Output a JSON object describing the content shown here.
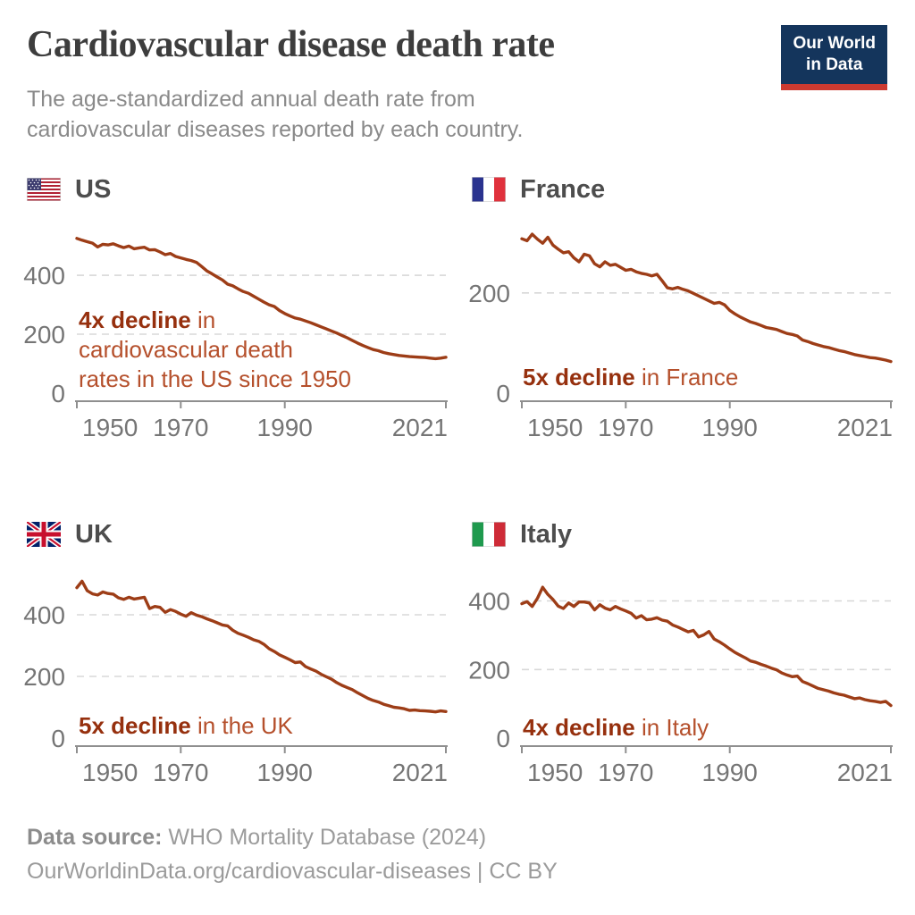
{
  "header": {
    "title": "Cardiovascular disease death rate",
    "subtitle": "The age-standardized annual death rate from cardiovascular diseases reported by each country.",
    "logo": {
      "line1": "Our World",
      "line2": "in Data"
    }
  },
  "footer": {
    "source_label": "Data source:",
    "source_value": " WHO Mortality Database (2024)",
    "link_line": "OurWorldinData.org/cardiovascular-diseases | CC BY"
  },
  "colors": {
    "line_color": "#9d3d17",
    "grid_color": "#d8d8d8",
    "axis_color": "#8f8f8f",
    "tick_label_color": "#757575",
    "title_color": "#3d3d3d",
    "subtitle_color": "#8a8a8a",
    "country_color": "#4d4d4d",
    "footer_color": "#9b9b9b",
    "anno_bold_color": "#96300e",
    "anno_color": "#b5502c",
    "logo_bg": "#14355c",
    "logo_accent": "#cd3a30"
  },
  "chart_data": [
    {
      "type": "line",
      "country": "US",
      "flag_icon": "us-flag-icon",
      "xlim": [
        1950,
        2021
      ],
      "x_ticks": [
        1950,
        1970,
        1990,
        2021
      ],
      "y_ticks": [
        0,
        200,
        400
      ],
      "ylim": [
        0,
        570
      ],
      "grid": true,
      "legend": "none",
      "annotation": {
        "bold": "4x decline",
        "line1_rest": " in",
        "line2": "cardiovascular death",
        "line3": "rates in the US since 1950"
      },
      "series": [
        {
          "name": "US cardiovascular death rate",
          "x_start": 1950,
          "x_step": 1,
          "values": [
            525,
            519,
            514,
            509,
            496,
            505,
            503,
            507,
            500,
            494,
            499,
            490,
            493,
            495,
            486,
            487,
            479,
            470,
            474,
            464,
            459,
            454,
            450,
            444,
            430,
            415,
            405,
            394,
            384,
            370,
            364,
            354,
            345,
            339,
            329,
            319,
            309,
            300,
            294,
            280,
            270,
            262,
            255,
            251,
            245,
            239,
            232,
            225,
            218,
            211,
            204,
            196,
            188,
            179,
            170,
            162,
            155,
            148,
            144,
            138,
            134,
            131,
            128,
            126,
            124,
            123,
            122,
            121,
            119,
            117,
            119,
            122
          ]
        }
      ]
    },
    {
      "type": "line",
      "country": "France",
      "flag_icon": "france-flag-icon",
      "xlim": [
        1950,
        2021
      ],
      "x_ticks": [
        1950,
        1970,
        1990,
        2021
      ],
      "y_ticks": [
        0,
        200
      ],
      "ylim": [
        0,
        335
      ],
      "grid": true,
      "legend": "none",
      "annotation": {
        "bold": "5x decline",
        "rest": " in France"
      },
      "series": [
        {
          "name": "France cardiovascular death rate",
          "x_start": 1950,
          "x_step": 1,
          "values": [
            308,
            304,
            317,
            307,
            299,
            311,
            295,
            287,
            280,
            282,
            270,
            262,
            277,
            274,
            258,
            252,
            262,
            255,
            257,
            251,
            245,
            247,
            242,
            239,
            237,
            234,
            237,
            224,
            210,
            208,
            211,
            207,
            204,
            199,
            194,
            189,
            184,
            179,
            181,
            176,
            165,
            158,
            152,
            147,
            142,
            139,
            135,
            131,
            129,
            127,
            123,
            119,
            117,
            114,
            106,
            103,
            99,
            96,
            93,
            91,
            88,
            85,
            83,
            80,
            77,
            75,
            73,
            71,
            70,
            68,
            66,
            63
          ]
        }
      ]
    },
    {
      "type": "line",
      "country": "UK",
      "flag_icon": "uk-flag-icon",
      "xlim": [
        1950,
        2021
      ],
      "x_ticks": [
        1950,
        1970,
        1990,
        2021
      ],
      "y_ticks": [
        0,
        200,
        400
      ],
      "ylim": [
        0,
        545
      ],
      "grid": true,
      "legend": "none",
      "annotation": {
        "bold": "5x decline",
        "rest": " in the UK"
      },
      "series": [
        {
          "name": "UK cardiovascular death rate",
          "x_start": 1950,
          "x_step": 1,
          "values": [
            488,
            509,
            478,
            468,
            464,
            474,
            469,
            467,
            455,
            450,
            457,
            451,
            454,
            457,
            420,
            427,
            424,
            408,
            417,
            411,
            402,
            395,
            407,
            399,
            394,
            387,
            381,
            374,
            367,
            364,
            350,
            340,
            334,
            327,
            319,
            314,
            304,
            290,
            281,
            270,
            262,
            254,
            245,
            247,
            232,
            224,
            217,
            207,
            199,
            191,
            180,
            171,
            164,
            157,
            147,
            138,
            129,
            122,
            117,
            110,
            105,
            100,
            98,
            95,
            90,
            91,
            89,
            88,
            87,
            85,
            88,
            86
          ]
        }
      ]
    },
    {
      "type": "line",
      "country": "Italy",
      "flag_icon": "italy-flag-icon",
      "xlim": [
        1950,
        2021
      ],
      "x_ticks": [
        1950,
        1970,
        1990,
        2021
      ],
      "y_ticks": [
        0,
        200,
        400
      ],
      "ylim": [
        0,
        490
      ],
      "grid": true,
      "legend": "none",
      "annotation": {
        "bold": "4x decline",
        "rest": " in Italy"
      },
      "series": [
        {
          "name": "Italy cardiovascular death rate",
          "x_start": 1950,
          "x_step": 1,
          "values": [
            392,
            398,
            384,
            408,
            440,
            419,
            404,
            385,
            378,
            394,
            384,
            397,
            397,
            394,
            374,
            389,
            379,
            374,
            384,
            377,
            371,
            364,
            350,
            357,
            345,
            347,
            351,
            344,
            341,
            330,
            324,
            317,
            310,
            314,
            295,
            301,
            311,
            289,
            281,
            271,
            260,
            250,
            242,
            234,
            225,
            221,
            215,
            210,
            204,
            199,
            190,
            184,
            179,
            181,
            165,
            159,
            152,
            145,
            141,
            137,
            132,
            128,
            125,
            120,
            115,
            117,
            112,
            109,
            107,
            104,
            107,
            95
          ]
        }
      ]
    }
  ]
}
